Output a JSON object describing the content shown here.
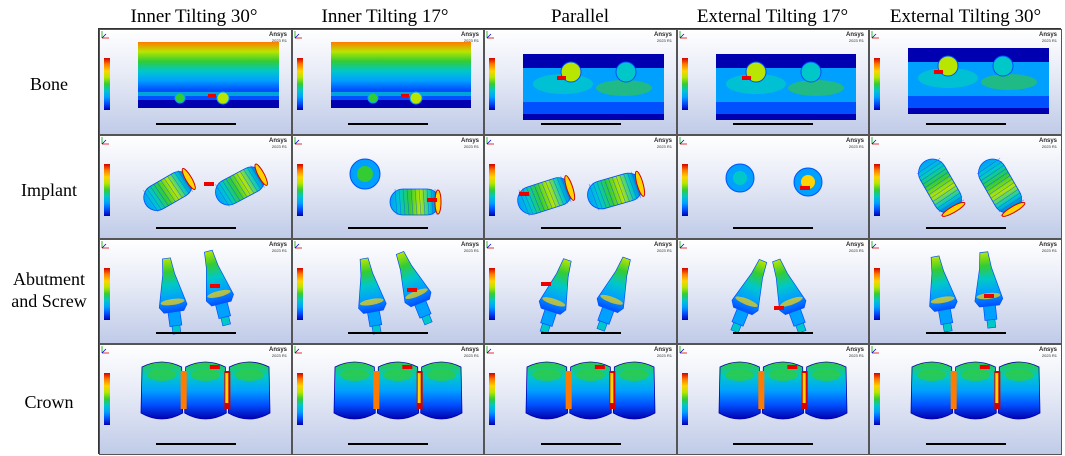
{
  "columns": [
    "Inner Tilting 30°",
    "Inner Tilting 17°",
    "Parallel",
    "External Tilting 17°",
    "External Tilting 30°"
  ],
  "rows": [
    "Bone",
    "Implant",
    "Abutment\nand Screw",
    "Crown"
  ],
  "watermark": {
    "brand": "Ansys",
    "edition": "2023 R1"
  },
  "colormap": [
    "#d40000",
    "#ff7a00",
    "#ffd400",
    "#b8e600",
    "#33cc33",
    "#00c8c8",
    "#00a0ff",
    "#0050ff",
    "#0000b0"
  ]
}
